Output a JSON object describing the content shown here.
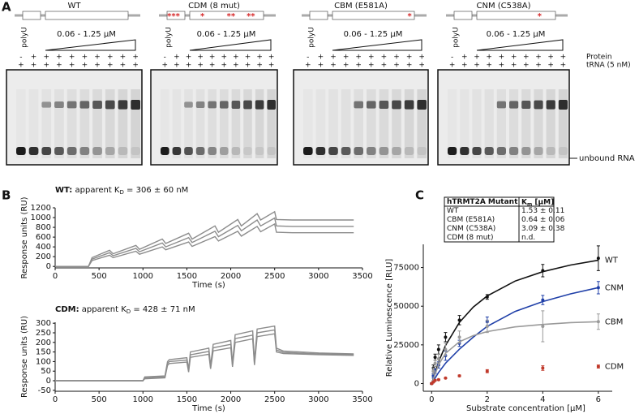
{
  "panel_labels": [
    "A",
    "B",
    "C"
  ],
  "gel_figure": {
    "gels": [
      {
        "title": "WT",
        "mutation_marks": []
      },
      {
        "title": "CDM (8 mut)",
        "mutation_marks": [
          "***",
          "*",
          "**",
          "**"
        ]
      },
      {
        "title": "CBM (E581A)",
        "mutation_marks": [
          "*"
        ]
      },
      {
        "title": "CNM (C538A)",
        "mutation_marks": [
          "*"
        ]
      }
    ],
    "polyU": "polyU",
    "concentration_range": "0.06 - 1.25 μM",
    "protein_label": "Protein",
    "trna_label": "tRNA (5 nM)",
    "protein_signs": [
      "-",
      "+",
      "+",
      "+",
      "+",
      "+",
      "+",
      "+",
      "+",
      "+"
    ],
    "trna_signs": [
      "+",
      "+",
      "+",
      "+",
      "+",
      "+",
      "+",
      "+",
      "+",
      "+"
    ],
    "unbound_label": "unbound RNA"
  },
  "chart_data": [
    {
      "type": "line",
      "title": {
        "name": "WT:",
        "text": " apparent K",
        "sub": "D",
        "rest": " = 306 ± 60 nM"
      },
      "x_label": "Time (s)",
      "y_label": "Response units (RU)",
      "x": [
        0,
        380,
        420,
        620,
        660,
        920,
        960,
        1220,
        1260,
        1520,
        1560,
        1820,
        1860,
        2080,
        2120,
        2300,
        2340,
        2500,
        2520,
        2700,
        3000,
        3400
      ],
      "series": [
        {
          "color": "#8c8c8c",
          "values": [
            0,
            0,
            180,
            330,
            260,
            430,
            350,
            560,
            470,
            680,
            560,
            830,
            700,
            960,
            830,
            1080,
            950,
            1120,
            960,
            950,
            950,
            950
          ]
        },
        {
          "color": "#8c8c8c",
          "values": [
            0,
            0,
            150,
            280,
            220,
            370,
            300,
            480,
            400,
            590,
            490,
            720,
            610,
            840,
            730,
            950,
            830,
            990,
            830,
            820,
            820,
            820
          ]
        },
        {
          "color": "#8c8c8c",
          "values": [
            0,
            0,
            120,
            230,
            180,
            310,
            250,
            400,
            340,
            500,
            410,
            610,
            520,
            720,
            620,
            820,
            710,
            870,
            700,
            690,
            690,
            690
          ]
        }
      ],
      "xlim": [
        0,
        3500
      ],
      "ylim": [
        -30,
        1200
      ],
      "xticks": [
        0,
        500,
        1000,
        1500,
        2000,
        2500,
        3000,
        3500
      ],
      "yticks": [
        0,
        200,
        400,
        600,
        800,
        1000,
        1200
      ]
    },
    {
      "type": "line",
      "title": {
        "name": "CDM:",
        "text": " apparent K",
        "sub": "D",
        "rest": " = 428 ± 71 nM"
      },
      "x_label": "Time (s)",
      "y_label": "Response units (RU)",
      "x": [
        0,
        1000,
        1020,
        1250,
        1280,
        1300,
        1500,
        1520,
        1540,
        1750,
        1770,
        1800,
        2000,
        2020,
        2050,
        2250,
        2270,
        2300,
        2500,
        2520,
        2600,
        3000,
        3400
      ],
      "series": [
        {
          "color": "#8c8c8c",
          "values": [
            0,
            0,
            20,
            25,
            100,
            110,
            120,
            60,
            150,
            170,
            80,
            190,
            210,
            90,
            240,
            260,
            100,
            270,
            285,
            170,
            155,
            145,
            140
          ]
        },
        {
          "color": "#8c8c8c",
          "values": [
            0,
            0,
            15,
            20,
            90,
            100,
            108,
            52,
            135,
            153,
            70,
            172,
            190,
            80,
            220,
            238,
            90,
            250,
            265,
            160,
            148,
            140,
            136
          ]
        },
        {
          "color": "#8c8c8c",
          "values": [
            0,
            0,
            10,
            15,
            80,
            90,
            97,
            45,
            122,
            138,
            62,
            156,
            172,
            72,
            200,
            218,
            82,
            230,
            245,
            150,
            142,
            136,
            132
          ]
        }
      ],
      "xlim": [
        0,
        3500
      ],
      "ylim": [
        -55,
        305
      ],
      "xticks": [
        0,
        500,
        1000,
        1500,
        2000,
        2500,
        3000,
        3500
      ],
      "yticks": [
        -50,
        0,
        50,
        100,
        150,
        200,
        250,
        300
      ]
    },
    {
      "type": "scatter",
      "x_label": "Substrate concentration [μM]",
      "y_label": "Relative Luminescence [RLU]",
      "x": [
        0,
        0.0625,
        0.125,
        0.25,
        0.5,
        1,
        2,
        4,
        6
      ],
      "fit_x": [
        0,
        0.25,
        0.5,
        1,
        1.5,
        2,
        3,
        4,
        5,
        6
      ],
      "series": [
        {
          "name": "WT",
          "color": "#111111",
          "values": [
            0,
            10000,
            17000,
            22000,
            30000,
            41000,
            56000,
            73000,
            81000
          ],
          "errors": [
            500,
            2000,
            2000,
            3000,
            3000,
            3000,
            1500,
            4000,
            8000
          ],
          "fit": [
            0,
            14000,
            24600,
            39500,
            49500,
            56600,
            66200,
            72300,
            76600,
            79700
          ]
        },
        {
          "name": "CNM",
          "color": "#1f3fa8",
          "values": [
            0,
            5000,
            8000,
            12000,
            18000,
            26000,
            40000,
            54000,
            62000
          ],
          "errors": [
            500,
            1500,
            1500,
            2000,
            3000,
            2000,
            3000,
            3000,
            4000
          ],
          "fit": [
            0,
            7100,
            13100,
            22200,
            30000,
            37000,
            46600,
            53000,
            58000,
            62000
          ]
        },
        {
          "name": "CBM",
          "color": "#9a9a9a",
          "values": [
            0,
            8000,
            13000,
            16000,
            22000,
            30000,
            37000,
            37000,
            40000
          ],
          "errors": [
            500,
            2000,
            2000,
            3000,
            4000,
            4000,
            4000,
            10000,
            5000
          ],
          "fit": [
            0,
            12100,
            19500,
            27000,
            31000,
            33600,
            36600,
            38200,
            39400,
            40000
          ]
        },
        {
          "name": "CDM",
          "color": "#c0392b",
          "values": [
            0,
            1000,
            2000,
            2500,
            3500,
            5000,
            8000,
            10000,
            11000
          ],
          "errors": [
            300,
            300,
            300,
            300,
            300,
            500,
            1000,
            1500,
            1000
          ]
        }
      ],
      "xlim": [
        -0.3,
        6.5
      ],
      "ylim": [
        -5000,
        90000
      ],
      "xticks": [
        0,
        2,
        4,
        6
      ],
      "yticks": [
        0,
        25000,
        50000,
        75000
      ]
    }
  ],
  "km_table": {
    "header": {
      "mutant": "hTRMT2A Mutant",
      "km": "K",
      "km_sub": "m",
      "km_unit": " [μM]"
    },
    "rows": [
      [
        "WT",
        "1.53 ± 0.11"
      ],
      [
        "CBM (E581A)",
        "0.64 ± 0.06"
      ],
      [
        "CNM (C538A)",
        "3.09 ± 0.38"
      ],
      [
        "CDM (8 mut)",
        "n.d."
      ]
    ]
  }
}
